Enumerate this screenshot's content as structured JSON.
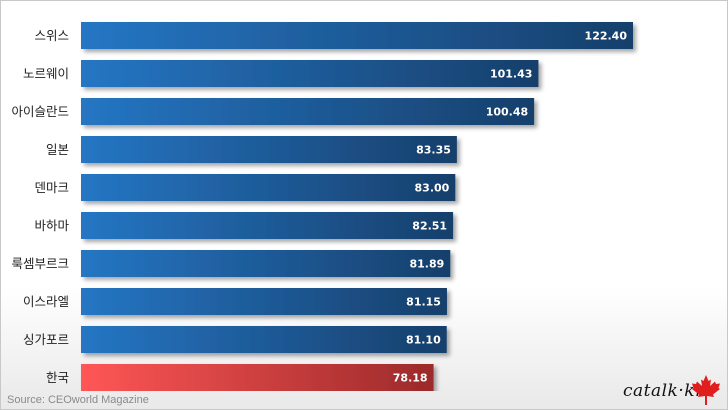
{
  "chart_data": {
    "type": "bar",
    "orientation": "horizontal",
    "categories": [
      "스위스",
      "노르웨이",
      "아이슬란드",
      "일본",
      "덴마크",
      "바하마",
      "룩셈부르크",
      "이스라엘",
      "싱가포르",
      "한국"
    ],
    "values": [
      122.4,
      101.43,
      100.48,
      83.35,
      83.0,
      82.51,
      81.89,
      81.15,
      81.1,
      78.18
    ],
    "value_labels": [
      "122.40",
      "101.43",
      "100.48",
      "83.35",
      "83.00",
      "82.51",
      "81.89",
      "81.15",
      "81.10",
      "78.18"
    ],
    "highlight_index": 9,
    "xlim": [
      0,
      122.4
    ],
    "grid": false,
    "colors": {
      "bar_start": "#2576c4",
      "bar_end": "#173f6b",
      "highlight_start": "#ff5656",
      "highlight_end": "#9c2a2a"
    }
  },
  "source": "Source: CEOworld Magazine",
  "logo": {
    "text": "catalk·kr",
    "icon": "maple-leaf-icon",
    "icon_color": "#e01e1e"
  }
}
